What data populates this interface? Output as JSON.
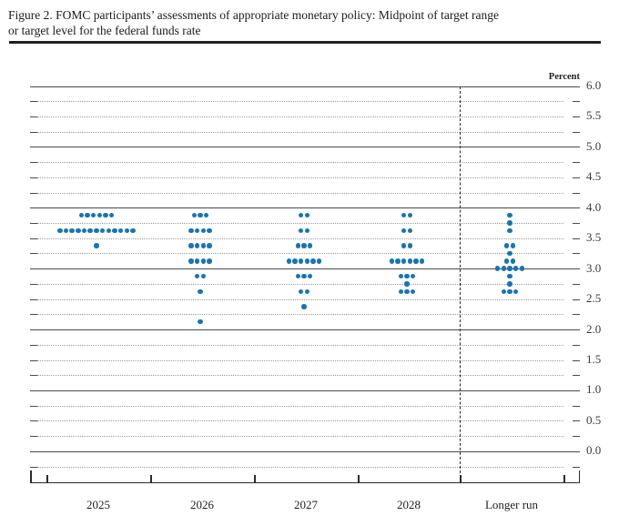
{
  "title": {
    "line1": "Figure 2. FOMC participants’ assessments of appropriate monetary policy: Midpoint of target range",
    "line2": "or target level for the federal funds rate"
  },
  "chart": {
    "percent_label": "Percent",
    "y_axis": {
      "min": 0.0,
      "max": 6.0,
      "label_step": 0.5,
      "grid_step": 0.25,
      "labels": [
        "6.0",
        "5.5",
        "5.0",
        "4.5",
        "4.0",
        "3.5",
        "3.0",
        "2.5",
        "2.0",
        "1.5",
        "1.0",
        "0.5",
        "0.0"
      ]
    },
    "x_axis": {
      "categories": [
        "2025",
        "2026",
        "2027",
        "2028",
        "Longer run"
      ]
    },
    "colors": {
      "dot": "#1b74ae",
      "major_grid": "#4a4a4a",
      "minor_grid": "#9c9c9c",
      "axis": "#2b2b2b",
      "text": "#1f1f1f"
    }
  },
  "chart_data": {
    "type": "scatter",
    "subtype": "fomc-dot-plot",
    "title": "FOMC participants’ assessments of appropriate monetary policy: Midpoint of target range or target level for the federal funds rate",
    "xlabel": "",
    "ylabel": "Percent",
    "ylim": [
      0.0,
      6.0
    ],
    "grid": "solid lines at integers, dotted lines at quarter-point steps",
    "legend": "none",
    "categories": [
      "2025",
      "2026",
      "2027",
      "2028",
      "Longer run"
    ],
    "series": [
      {
        "category": "2025",
        "dots": [
          {
            "rate": 3.875,
            "count": 6
          },
          {
            "rate": 3.625,
            "count": 13
          },
          {
            "rate": 3.375,
            "count": 1
          }
        ]
      },
      {
        "category": "2026",
        "dots": [
          {
            "rate": 3.875,
            "count": 3
          },
          {
            "rate": 3.625,
            "count": 4
          },
          {
            "rate": 3.375,
            "count": 4
          },
          {
            "rate": 3.125,
            "count": 4
          },
          {
            "rate": 2.875,
            "count": 2
          },
          {
            "rate": 2.625,
            "count": 1
          },
          {
            "rate": 2.125,
            "count": 1
          }
        ]
      },
      {
        "category": "2027",
        "dots": [
          {
            "rate": 3.875,
            "count": 2
          },
          {
            "rate": 3.625,
            "count": 2
          },
          {
            "rate": 3.375,
            "count": 3
          },
          {
            "rate": 3.125,
            "count": 6
          },
          {
            "rate": 2.875,
            "count": 3
          },
          {
            "rate": 2.625,
            "count": 2
          },
          {
            "rate": 2.375,
            "count": 1
          }
        ]
      },
      {
        "category": "2028",
        "dots": [
          {
            "rate": 3.875,
            "count": 2
          },
          {
            "rate": 3.625,
            "count": 2
          },
          {
            "rate": 3.375,
            "count": 2
          },
          {
            "rate": 3.125,
            "count": 6
          },
          {
            "rate": 2.875,
            "count": 3
          },
          {
            "rate": 2.75,
            "count": 1
          },
          {
            "rate": 2.625,
            "count": 3
          }
        ]
      },
      {
        "category": "Longer run",
        "dots": [
          {
            "rate": 3.875,
            "count": 1
          },
          {
            "rate": 3.75,
            "count": 1
          },
          {
            "rate": 3.625,
            "count": 1
          },
          {
            "rate": 3.375,
            "count": 2
          },
          {
            "rate": 3.25,
            "count": 1
          },
          {
            "rate": 3.125,
            "count": 2
          },
          {
            "rate": 3.0,
            "count": 5
          },
          {
            "rate": 2.875,
            "count": 1
          },
          {
            "rate": 2.75,
            "count": 1
          },
          {
            "rate": 2.625,
            "count": 3
          }
        ]
      }
    ]
  }
}
